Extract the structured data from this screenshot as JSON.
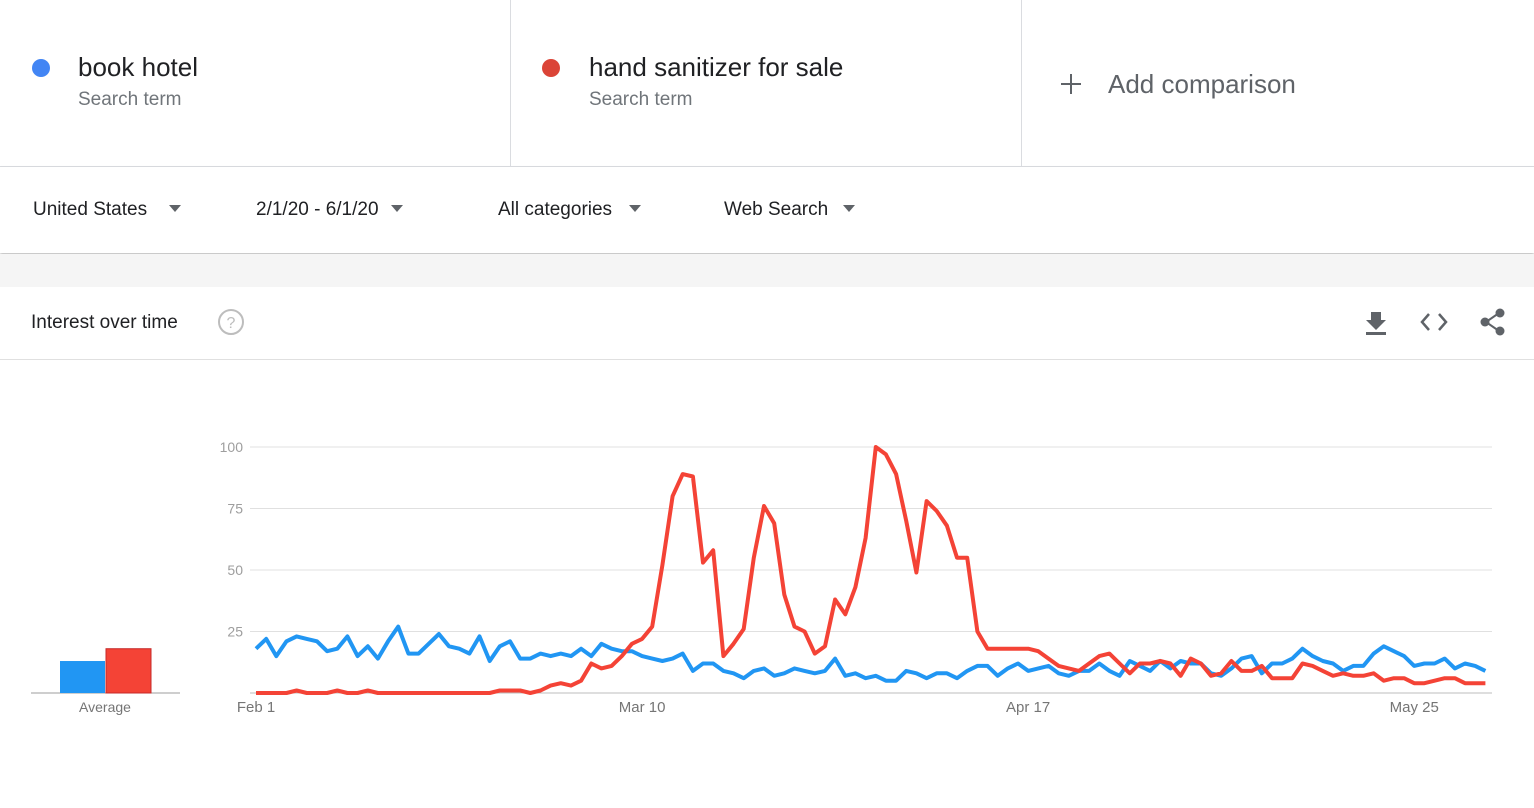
{
  "header": {
    "search_term_label": "Search term",
    "add_comparison": "Add comparison"
  },
  "filters": {
    "region": "United States",
    "date_range": "2/1/20 - 6/1/20",
    "category": "All categories",
    "search_type": "Web Search"
  },
  "panel": {
    "title": "Interest over time"
  },
  "chart_data": [
    {
      "type": "bar",
      "categories": [
        "Average"
      ],
      "series": [
        {
          "color": "#2196f3",
          "values": [
            13
          ]
        },
        {
          "color": "#f44336",
          "values": [
            18
          ]
        }
      ],
      "ylim": [
        0,
        100
      ]
    },
    {
      "type": "line",
      "categories": [
        "Feb 1",
        null,
        null,
        null,
        null,
        null,
        null,
        null,
        null,
        null,
        null,
        null,
        null,
        null,
        null,
        null,
        null,
        null,
        null,
        null,
        null,
        null,
        null,
        null,
        null,
        null,
        null,
        null,
        null,
        null,
        null,
        null,
        null,
        null,
        null,
        null,
        null,
        null,
        "Mar 10",
        null,
        null,
        null,
        null,
        null,
        null,
        null,
        null,
        null,
        null,
        null,
        null,
        null,
        null,
        null,
        null,
        null,
        null,
        null,
        null,
        null,
        null,
        null,
        null,
        null,
        null,
        null,
        null,
        null,
        null,
        null,
        null,
        null,
        null,
        null,
        null,
        null,
        "Apr 17",
        null,
        null,
        null,
        null,
        null,
        null,
        null,
        null,
        null,
        null,
        null,
        null,
        null,
        null,
        null,
        null,
        null,
        null,
        null,
        null,
        null,
        null,
        null,
        null,
        null,
        null,
        null,
        null,
        null,
        null,
        null,
        null,
        null,
        null,
        null,
        null,
        null,
        "May 25",
        null,
        null,
        null,
        null,
        null,
        null,
        null
      ],
      "series": [
        {
          "name": "book hotel",
          "color": "#2196f3",
          "values": [
            18,
            22,
            15,
            21,
            23,
            22,
            21,
            17,
            18,
            23,
            15,
            19,
            14,
            21,
            27,
            16,
            16,
            20,
            24,
            19,
            18,
            16,
            23,
            13,
            19,
            21,
            14,
            14,
            16,
            15,
            16,
            15,
            18,
            15,
            20,
            18,
            17,
            17,
            15,
            14,
            13,
            14,
            16,
            9,
            12,
            12,
            9,
            8,
            6,
            9,
            10,
            7,
            8,
            10,
            9,
            8,
            9,
            14,
            7,
            8,
            6,
            7,
            5,
            5,
            9,
            8,
            6,
            8,
            8,
            6,
            9,
            11,
            11,
            7,
            10,
            12,
            9,
            10,
            11,
            8,
            7,
            9,
            9,
            12,
            9,
            7,
            13,
            11,
            9,
            13,
            10,
            13,
            12,
            12,
            8,
            7,
            10,
            14,
            15,
            8,
            12,
            12,
            14,
            18,
            15,
            13,
            12,
            9,
            11,
            11,
            16,
            19,
            17,
            15,
            11,
            12,
            12,
            14,
            10,
            12,
            11,
            9
          ]
        },
        {
          "name": "hand sanitizer for sale",
          "color": "#f44336",
          "values": [
            0,
            0,
            0,
            0,
            1,
            0,
            0,
            0,
            1,
            0,
            0,
            1,
            0,
            0,
            0,
            0,
            0,
            0,
            0,
            0,
            0,
            0,
            0,
            0,
            1,
            1,
            1,
            0,
            1,
            3,
            4,
            3,
            5,
            12,
            10,
            11,
            15,
            20,
            22,
            27,
            52,
            80,
            89,
            88,
            53,
            58,
            15,
            20,
            26,
            55,
            76,
            69,
            40,
            27,
            25,
            16,
            19,
            38,
            32,
            43,
            63,
            100,
            97,
            89,
            70,
            49,
            78,
            74,
            68,
            55,
            55,
            25,
            18,
            18,
            18,
            18,
            18,
            17,
            14,
            11,
            10,
            9,
            12,
            15,
            16,
            12,
            8,
            12,
            12,
            13,
            12,
            7,
            14,
            12,
            7,
            8,
            13,
            9,
            9,
            11,
            6,
            6,
            6,
            12,
            11,
            9,
            7,
            8,
            7,
            7,
            8,
            5,
            6,
            6,
            4,
            4,
            5,
            6,
            6,
            4,
            4,
            4
          ]
        }
      ],
      "ylim": [
        0,
        100
      ],
      "yticks": [
        25,
        50,
        75,
        100
      ],
      "grid": true
    }
  ]
}
